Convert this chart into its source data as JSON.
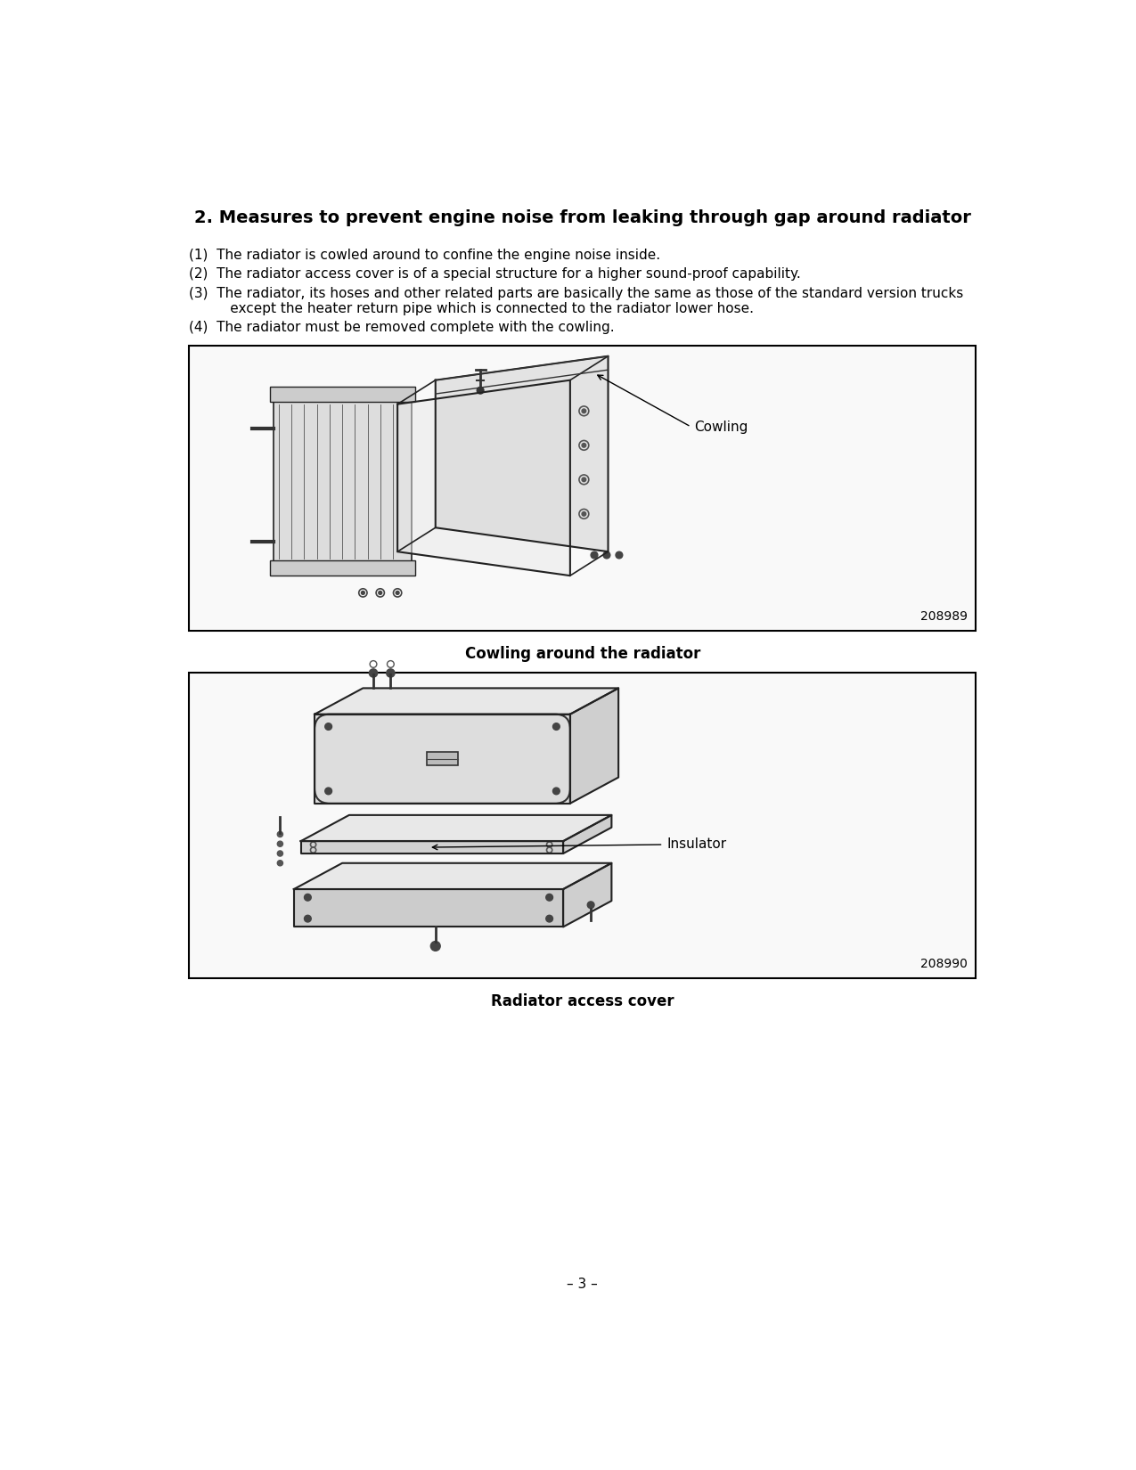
{
  "title": "2. Measures to prevent engine noise from leaking through gap around radiator",
  "line1": "(1)  The radiator is cowled around to confine the engine noise inside.",
  "line2": "(2)  The radiator access cover is of a special structure for a higher sound-proof capability.",
  "line3a": "(3)  The radiator, its hoses and other related parts are basically the same as those of the standard version trucks",
  "line3b": "      except the heater return pipe which is connected to the radiator lower hose.",
  "line4": "(4)  The radiator must be removed complete with the cowling.",
  "fig1_caption": "Cowling around the radiator",
  "fig1_label": "Cowling",
  "fig1_number": "208989",
  "fig2_caption": "Radiator access cover",
  "fig2_label": "Insulator",
  "fig2_number": "208990",
  "page_number": "– 3 –",
  "bg_color": "#ffffff",
  "text_color": "#000000",
  "border_color": "#000000"
}
